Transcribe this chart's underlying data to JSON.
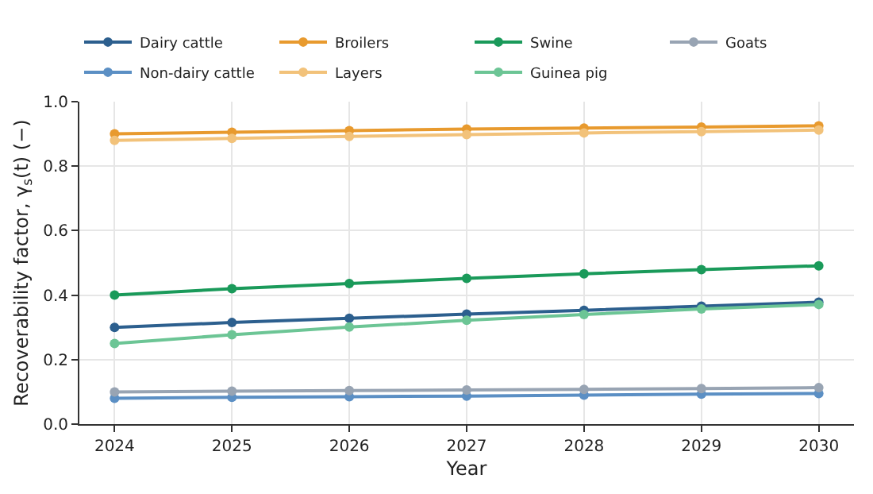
{
  "chart_data": {
    "type": "line",
    "xlabel": "Year",
    "ylabel": "Recoverability factor, γ$_{s}$(t) (−)",
    "x": [
      2024,
      2025,
      2026,
      2027,
      2028,
      2029,
      2030
    ],
    "series": [
      {
        "name": "Dairy cattle",
        "color": "#2c5f8e",
        "values": [
          0.3,
          0.315,
          0.328,
          0.341,
          0.353,
          0.366,
          0.378
        ]
      },
      {
        "name": "Non-dairy cattle",
        "color": "#5b8fc4",
        "values": [
          0.08,
          0.083,
          0.085,
          0.087,
          0.09,
          0.093,
          0.095
        ]
      },
      {
        "name": "Broilers",
        "color": "#e89a2e",
        "values": [
          0.9,
          0.905,
          0.91,
          0.915,
          0.918,
          0.921,
          0.925
        ]
      },
      {
        "name": "Layers",
        "color": "#f2c27a",
        "values": [
          0.88,
          0.886,
          0.892,
          0.898,
          0.903,
          0.907,
          0.912
        ]
      },
      {
        "name": "Swine",
        "color": "#1a9a5a",
        "values": [
          0.4,
          0.42,
          0.436,
          0.452,
          0.466,
          0.479,
          0.491
        ]
      },
      {
        "name": "Guinea pig",
        "color": "#6cc595",
        "values": [
          0.25,
          0.277,
          0.301,
          0.322,
          0.34,
          0.357,
          0.371
        ]
      },
      {
        "name": "Goats",
        "color": "#98a4b3",
        "values": [
          0.1,
          0.102,
          0.104,
          0.106,
          0.108,
          0.11,
          0.113
        ]
      }
    ],
    "xlim": [
      2023.7,
      2030.3
    ],
    "xticks": [
      2024,
      2025,
      2026,
      2027,
      2028,
      2029,
      2030
    ],
    "ylim": [
      0,
      1.0
    ],
    "yticks": [
      {
        "value": 0,
        "label": "0.0"
      },
      {
        "value": 0.2,
        "label": "0.2"
      },
      {
        "value": 0.4,
        "label": "0.4"
      },
      {
        "value": 0.6,
        "label": "0.6"
      },
      {
        "value": 0.8,
        "label": "0.8"
      },
      {
        "value": 1,
        "label": "1.0"
      }
    ],
    "grid": true,
    "legend": "top",
    "marker": "circle",
    "line_style": "solid"
  }
}
